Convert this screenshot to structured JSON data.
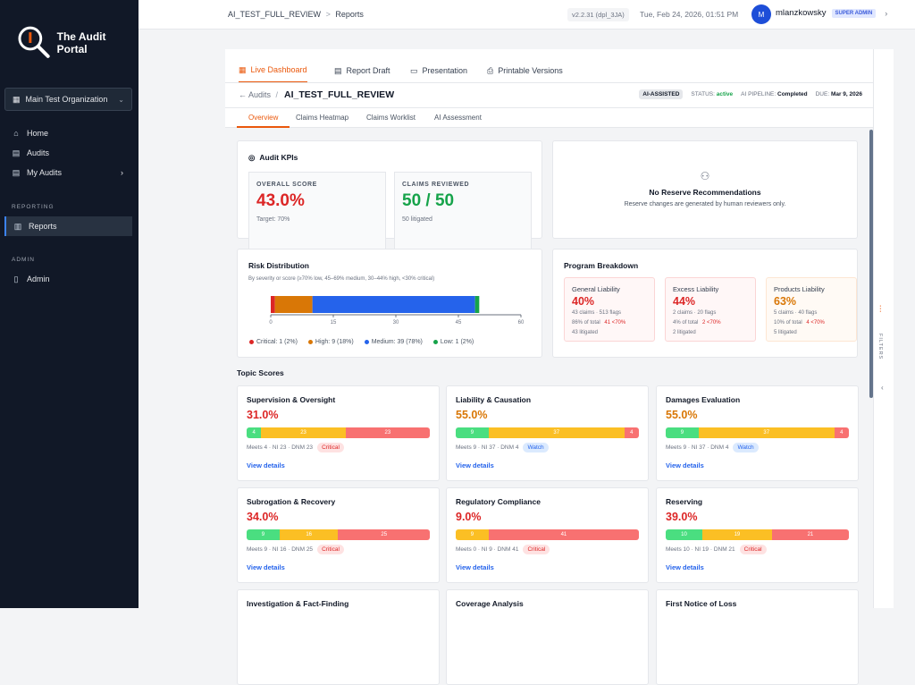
{
  "sidebar": {
    "app_title": "The Audit Portal",
    "org": "Main Test Organization",
    "nav": [
      {
        "label": "Home"
      },
      {
        "label": "Audits"
      },
      {
        "label": "My Audits"
      }
    ],
    "reporting_label": "REPORTING",
    "reports": "Reports",
    "admin_label": "ADMIN",
    "admin": "Admin"
  },
  "topbar": {
    "crumb1": "AI_TEST_FULL_REVIEW",
    "sep": ">",
    "crumb2": "Reports",
    "version": "v2.2.31 (dpl_3JA)",
    "datetime": "Tue, Feb 24, 2026, 01:51 PM",
    "avatar": "M",
    "user": "mlanzkowsky",
    "role": "SUPER ADMIN",
    "chevron": "›"
  },
  "tabs": [
    "Live Dashboard",
    "Report Draft",
    "Presentation",
    "Printable Versions"
  ],
  "header": {
    "back": "Audits",
    "slash": "/",
    "title": "AI_TEST_FULL_REVIEW",
    "ai_badge": "AI-ASSISTED",
    "status_label": "STATUS:",
    "status": "active",
    "pipeline_label": "AI PIPELINE:",
    "pipeline": "Completed",
    "due_label": "DUE:",
    "due": "Mar 9, 2026"
  },
  "subtabs": [
    "Overview",
    "Claims Heatmap",
    "Claims Worklist",
    "AI Assessment"
  ],
  "kpis": {
    "title": "Audit KPIs",
    "overall_label": "OVERALL SCORE",
    "overall": "43.0%",
    "target": "Target: 70%",
    "claims_label": "CLAIMS REVIEWED",
    "claims": "50 / 50",
    "litigated": "50 litigated"
  },
  "reserve": {
    "title": "No Reserve Recommendations",
    "text": "Reserve changes are generated by human reviewers only."
  },
  "chart_data": {
    "type": "bar",
    "title": "Risk Distribution",
    "subtitle": "By severity or score (≥70% low, 45–69% medium, 30–44% high, <30% critical)",
    "categories": [
      "Critical",
      "High",
      "Medium",
      "Low"
    ],
    "values": [
      1,
      9,
      39,
      1
    ],
    "colors": [
      "#dc2626",
      "#d97706",
      "#2563eb",
      "#16a34a"
    ],
    "legend": [
      "Critical: 1 (2%)",
      "High: 9 (18%)",
      "Medium: 39 (78%)",
      "Low: 1 (2%)"
    ],
    "xlim": [
      0,
      60
    ],
    "ticks": [
      "0",
      "15",
      "30",
      "45",
      "60"
    ]
  },
  "program": {
    "title": "Program Breakdown",
    "items": [
      {
        "name": "General Liability",
        "pct": "40%",
        "claims": "43 claims · 513 flags",
        "share": "86% of total",
        "below": "41 <70%",
        "lit": "43 litigated",
        "color": "#dc2626"
      },
      {
        "name": "Excess Liability",
        "pct": "44%",
        "claims": "2 claims · 20 flags",
        "share": "4% of total",
        "below": "2 <70%",
        "lit": "2 litigated",
        "color": "#dc2626"
      },
      {
        "name": "Products Liability",
        "pct": "63%",
        "claims": "5 claims · 40 flags",
        "share": "10% of total",
        "below": "4 <70%",
        "lit": "5 litigated",
        "color": "#d97706"
      }
    ]
  },
  "topics_title": "Topic Scores",
  "topics": [
    {
      "name": "Supervision & Oversight",
      "pct": "31.0%",
      "meets": 4,
      "ni": 23,
      "dnm": 23,
      "meta": "Meets 4 · NI 23 · DNM 23",
      "badge": "Critical",
      "link": "View details"
    },
    {
      "name": "Liability & Causation",
      "pct": "55.0%",
      "meets": 9,
      "ni": 37,
      "dnm": 4,
      "meta": "Meets 9 · NI 37 · DNM 4",
      "badge": "Watch",
      "link": "View details"
    },
    {
      "name": "Damages Evaluation",
      "pct": "55.0%",
      "meets": 9,
      "ni": 37,
      "dnm": 4,
      "meta": "Meets 9 · NI 37 · DNM 4",
      "badge": "Watch",
      "link": "View details"
    },
    {
      "name": "Subrogation & Recovery",
      "pct": "34.0%",
      "meets": 9,
      "ni": 16,
      "dnm": 25,
      "meta": "Meets 9 · NI 16 · DNM 25",
      "badge": "Critical",
      "link": "View details"
    },
    {
      "name": "Regulatory Compliance",
      "pct": "9.0%",
      "meets": 0,
      "ni": 9,
      "dnm": 41,
      "meta": "Meets 0 · NI 9 · DNM 41",
      "badge": "Critical",
      "link": "View details"
    },
    {
      "name": "Reserving",
      "pct": "39.0%",
      "meets": 10,
      "ni": 19,
      "dnm": 21,
      "meta": "Meets 10 · NI 19 · DNM 21",
      "badge": "Critical",
      "link": "View details"
    },
    {
      "name": "Investigation & Fact-Finding"
    },
    {
      "name": "Coverage Analysis"
    },
    {
      "name": "First Notice of Loss"
    }
  ],
  "filters": "FILTERS"
}
